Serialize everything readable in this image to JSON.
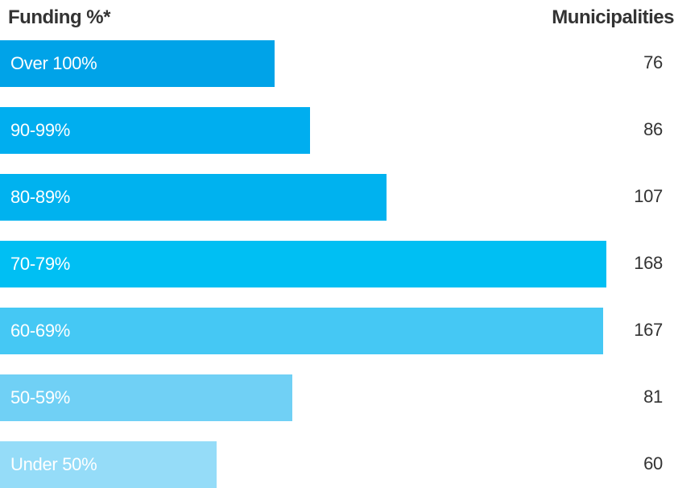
{
  "header": {
    "left": "Funding %*",
    "right": "Municipalities"
  },
  "chart_data": {
    "type": "bar",
    "orientation": "horizontal",
    "xlabel": "Funding %*",
    "ylabel": "Municipalities",
    "categories": [
      "Over 100%",
      "90-99%",
      "80-89%",
      "70-79%",
      "60-69%",
      "50-59%",
      "Under 50%"
    ],
    "values": [
      76,
      86,
      107,
      168,
      167,
      81,
      60
    ],
    "colors": [
      "#00a3e8",
      "#00aeef",
      "#00b2ef",
      "#00bff3",
      "#45c8f4",
      "#70d0f5",
      "#95dcf8"
    ],
    "value_labels": [
      "76",
      "86",
      "107",
      "168",
      "167",
      "81",
      "60"
    ],
    "grid": false,
    "legend": "none"
  }
}
